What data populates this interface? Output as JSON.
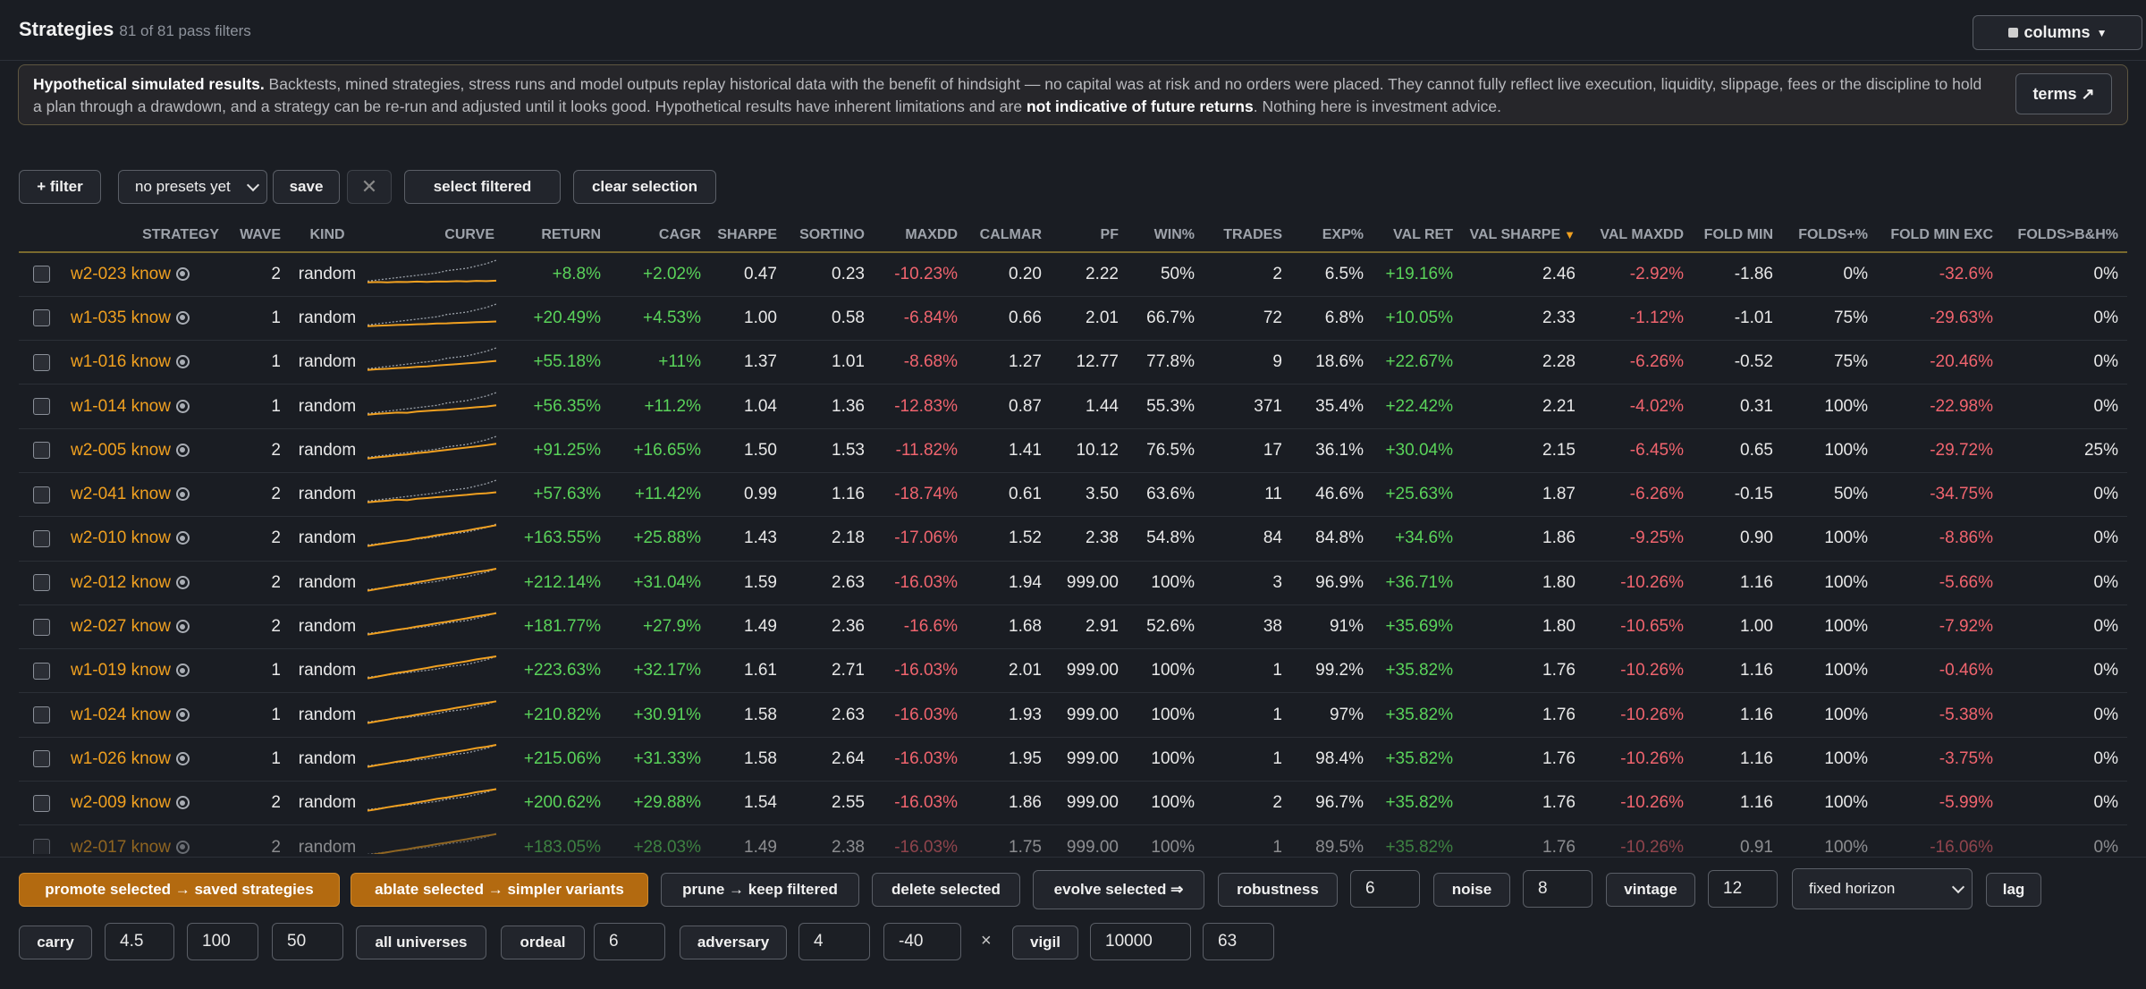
{
  "header": {
    "title": "Strategies",
    "subtitle": "81 of 81 pass filters",
    "columns_label": "columns"
  },
  "disclaimer": {
    "bold_lead": "Hypothetical simulated results.",
    "text1": " Backtests, mined strategies, stress runs and model outputs replay historical data with the benefit of hindsight — no capital was at risk and no orders were placed. They cannot fully reflect live execution, liquidity, slippage, fees or the discipline to hold a plan through a drawdown, and a strategy can be re-run and adjusted until it looks good. Hypothetical results have inherent limitations and are ",
    "bold_mid": "not indicative of future returns",
    "text2": ". Nothing here is investment advice.",
    "terms_label": "terms ↗"
  },
  "toolbar": {
    "filter_label": "+ filter",
    "preset_value": "no presets yet",
    "save_label": "save",
    "clear_x": "✕",
    "select_filtered_label": "select filtered",
    "clear_selection_label": "clear selection"
  },
  "table": {
    "headers": [
      "STRATEGY",
      "WAVE",
      "KIND",
      "CURVE",
      "RETURN",
      "CAGR",
      "SHARPE",
      "SORTINO",
      "MAXDD",
      "CALMAR",
      "PF",
      "WIN%",
      "TRADES",
      "EXP%",
      "VAL RET",
      "VAL SHARPE",
      "VAL MAXDD",
      "FOLD MIN",
      "FOLDS+%",
      "FOLD MIN EXC",
      "FOLDS>B&H%"
    ],
    "sort_indicator": "▼",
    "rows": [
      {
        "name": "w2-023 know",
        "wave": "2",
        "kind": "random",
        "ret": "+8.8%",
        "cagr": "+2.02%",
        "sharpe": "0.47",
        "sortino": "0.23",
        "maxdd": "-10.23%",
        "calmar": "0.20",
        "pf": "2.22",
        "win": "50%",
        "trades": "2",
        "exp": "6.5%",
        "valret": "+19.16%",
        "valsharpe": "2.46",
        "valmaxdd": "-2.92%",
        "foldmin": "-1.86",
        "foldspos": "0%",
        "foldminexc": "-32.6%",
        "foldsbh": "0%",
        "curve": [
          0.05,
          0.06,
          0.05,
          0.07,
          0.06,
          0.08,
          0.07,
          0.09,
          0.08,
          0.1,
          0.09,
          0.11,
          0.1,
          0.12
        ],
        "bench": [
          0.1,
          0.15,
          0.2,
          0.25,
          0.3,
          0.35,
          0.4,
          0.45,
          0.55,
          0.6,
          0.65,
          0.75,
          0.85,
          1.0
        ]
      },
      {
        "name": "w1-035 know",
        "wave": "1",
        "kind": "random",
        "ret": "+20.49%",
        "cagr": "+4.53%",
        "sharpe": "1.00",
        "sortino": "0.58",
        "maxdd": "-6.84%",
        "calmar": "0.66",
        "pf": "2.01",
        "win": "66.7%",
        "trades": "72",
        "exp": "6.8%",
        "valret": "+10.05%",
        "valsharpe": "2.33",
        "valmaxdd": "-1.12%",
        "foldmin": "-1.01",
        "foldspos": "75%",
        "foldminexc": "-29.63%",
        "foldsbh": "0%",
        "curve": [
          0.05,
          0.07,
          0.08,
          0.1,
          0.11,
          0.13,
          0.14,
          0.16,
          0.17,
          0.19,
          0.2,
          0.22,
          0.23,
          0.25
        ],
        "bench": [
          0.1,
          0.15,
          0.2,
          0.25,
          0.3,
          0.35,
          0.4,
          0.45,
          0.55,
          0.6,
          0.65,
          0.75,
          0.85,
          1.0
        ]
      },
      {
        "name": "w1-016 know",
        "wave": "1",
        "kind": "random",
        "ret": "+55.18%",
        "cagr": "+11%",
        "sharpe": "1.37",
        "sortino": "1.01",
        "maxdd": "-8.68%",
        "calmar": "1.27",
        "pf": "12.77",
        "win": "77.8%",
        "trades": "9",
        "exp": "18.6%",
        "valret": "+22.67%",
        "valsharpe": "2.28",
        "valmaxdd": "-6.26%",
        "foldmin": "-0.52",
        "foldspos": "75%",
        "foldminexc": "-20.46%",
        "foldsbh": "0%",
        "curve": [
          0.05,
          0.08,
          0.1,
          0.13,
          0.15,
          0.18,
          0.2,
          0.24,
          0.27,
          0.3,
          0.33,
          0.36,
          0.4,
          0.44
        ],
        "bench": [
          0.1,
          0.15,
          0.2,
          0.25,
          0.3,
          0.35,
          0.4,
          0.45,
          0.55,
          0.6,
          0.65,
          0.75,
          0.85,
          1.0
        ]
      },
      {
        "name": "w1-014 know",
        "wave": "1",
        "kind": "random",
        "ret": "+56.35%",
        "cagr": "+11.2%",
        "sharpe": "1.04",
        "sortino": "1.36",
        "maxdd": "-12.83%",
        "calmar": "0.87",
        "pf": "1.44",
        "win": "55.3%",
        "trades": "371",
        "exp": "35.4%",
        "valret": "+22.42%",
        "valsharpe": "2.21",
        "valmaxdd": "-4.02%",
        "foldmin": "0.31",
        "foldspos": "100%",
        "foldminexc": "-22.98%",
        "foldsbh": "0%",
        "curve": [
          0.05,
          0.09,
          0.11,
          0.14,
          0.13,
          0.18,
          0.21,
          0.24,
          0.26,
          0.3,
          0.33,
          0.37,
          0.4,
          0.45
        ],
        "bench": [
          0.1,
          0.15,
          0.2,
          0.25,
          0.3,
          0.35,
          0.4,
          0.45,
          0.55,
          0.6,
          0.65,
          0.75,
          0.85,
          1.0
        ]
      },
      {
        "name": "w2-005 know",
        "wave": "2",
        "kind": "random",
        "ret": "+91.25%",
        "cagr": "+16.65%",
        "sharpe": "1.50",
        "sortino": "1.53",
        "maxdd": "-11.82%",
        "calmar": "1.41",
        "pf": "10.12",
        "win": "76.5%",
        "trades": "17",
        "exp": "36.1%",
        "valret": "+30.04%",
        "valsharpe": "2.15",
        "valmaxdd": "-6.45%",
        "foldmin": "0.65",
        "foldspos": "100%",
        "foldminexc": "-29.72%",
        "foldsbh": "25%",
        "curve": [
          0.05,
          0.1,
          0.14,
          0.19,
          0.22,
          0.28,
          0.32,
          0.37,
          0.42,
          0.47,
          0.52,
          0.57,
          0.62,
          0.68
        ],
        "bench": [
          0.1,
          0.15,
          0.2,
          0.25,
          0.3,
          0.35,
          0.4,
          0.45,
          0.55,
          0.6,
          0.65,
          0.75,
          0.85,
          1.0
        ]
      },
      {
        "name": "w2-041 know",
        "wave": "2",
        "kind": "random",
        "ret": "+57.63%",
        "cagr": "+11.42%",
        "sharpe": "0.99",
        "sortino": "1.16",
        "maxdd": "-18.74%",
        "calmar": "0.61",
        "pf": "3.50",
        "win": "63.6%",
        "trades": "11",
        "exp": "46.6%",
        "valret": "+25.63%",
        "valsharpe": "1.87",
        "valmaxdd": "-6.26%",
        "foldmin": "-0.15",
        "foldspos": "50%",
        "foldminexc": "-34.75%",
        "foldsbh": "0%",
        "curve": [
          0.05,
          0.09,
          0.12,
          0.16,
          0.14,
          0.2,
          0.23,
          0.27,
          0.3,
          0.34,
          0.37,
          0.41,
          0.44,
          0.48
        ],
        "bench": [
          0.1,
          0.15,
          0.2,
          0.25,
          0.3,
          0.35,
          0.4,
          0.45,
          0.55,
          0.6,
          0.65,
          0.75,
          0.85,
          1.0
        ]
      },
      {
        "name": "w2-010 know",
        "wave": "2",
        "kind": "random",
        "ret": "+163.55%",
        "cagr": "+25.88%",
        "sharpe": "1.43",
        "sortino": "2.18",
        "maxdd": "-17.06%",
        "calmar": "1.52",
        "pf": "2.38",
        "win": "54.8%",
        "trades": "84",
        "exp": "84.8%",
        "valret": "+34.6%",
        "valsharpe": "1.86",
        "valmaxdd": "-9.25%",
        "foldmin": "0.90",
        "foldspos": "100%",
        "foldminexc": "-8.86%",
        "foldsbh": "0%",
        "curve": [
          0.05,
          0.12,
          0.18,
          0.25,
          0.3,
          0.38,
          0.44,
          0.52,
          0.58,
          0.65,
          0.72,
          0.8,
          0.87,
          0.95
        ],
        "bench": [
          0.1,
          0.15,
          0.2,
          0.25,
          0.3,
          0.35,
          0.4,
          0.45,
          0.55,
          0.6,
          0.65,
          0.75,
          0.85,
          1.0
        ]
      },
      {
        "name": "w2-012 know",
        "wave": "2",
        "kind": "random",
        "ret": "+212.14%",
        "cagr": "+31.04%",
        "sharpe": "1.59",
        "sortino": "2.63",
        "maxdd": "-16.03%",
        "calmar": "1.94",
        "pf": "999.00",
        "win": "100%",
        "trades": "3",
        "exp": "96.9%",
        "valret": "+36.71%",
        "valsharpe": "1.80",
        "valmaxdd": "-10.26%",
        "foldmin": "1.16",
        "foldspos": "100%",
        "foldminexc": "-5.66%",
        "foldsbh": "0%",
        "curve": [
          0.05,
          0.13,
          0.2,
          0.28,
          0.34,
          0.42,
          0.49,
          0.57,
          0.63,
          0.71,
          0.78,
          0.86,
          0.92,
          1.0
        ],
        "bench": [
          0.1,
          0.15,
          0.2,
          0.25,
          0.3,
          0.35,
          0.4,
          0.45,
          0.55,
          0.6,
          0.65,
          0.75,
          0.85,
          1.0
        ]
      },
      {
        "name": "w2-027 know",
        "wave": "2",
        "kind": "random",
        "ret": "+181.77%",
        "cagr": "+27.9%",
        "sharpe": "1.49",
        "sortino": "2.36",
        "maxdd": "-16.6%",
        "calmar": "1.68",
        "pf": "2.91",
        "win": "52.6%",
        "trades": "38",
        "exp": "91%",
        "valret": "+35.69%",
        "valsharpe": "1.80",
        "valmaxdd": "-10.65%",
        "foldmin": "1.00",
        "foldspos": "100%",
        "foldminexc": "-7.92%",
        "foldsbh": "0%",
        "curve": [
          0.05,
          0.12,
          0.19,
          0.26,
          0.32,
          0.4,
          0.46,
          0.54,
          0.6,
          0.68,
          0.75,
          0.83,
          0.9,
          0.97
        ],
        "bench": [
          0.1,
          0.15,
          0.2,
          0.25,
          0.3,
          0.35,
          0.4,
          0.45,
          0.55,
          0.6,
          0.65,
          0.75,
          0.85,
          1.0
        ]
      },
      {
        "name": "w1-019 know",
        "wave": "1",
        "kind": "random",
        "ret": "+223.63%",
        "cagr": "+32.17%",
        "sharpe": "1.61",
        "sortino": "2.71",
        "maxdd": "-16.03%",
        "calmar": "2.01",
        "pf": "999.00",
        "win": "100%",
        "trades": "1",
        "exp": "99.2%",
        "valret": "+35.82%",
        "valsharpe": "1.76",
        "valmaxdd": "-10.26%",
        "foldmin": "1.16",
        "foldspos": "100%",
        "foldminexc": "-0.46%",
        "foldsbh": "0%",
        "curve": [
          0.05,
          0.13,
          0.21,
          0.29,
          0.35,
          0.43,
          0.5,
          0.58,
          0.64,
          0.72,
          0.79,
          0.87,
          0.93,
          1.0
        ],
        "bench": [
          0.1,
          0.15,
          0.2,
          0.25,
          0.3,
          0.35,
          0.4,
          0.45,
          0.55,
          0.6,
          0.65,
          0.75,
          0.85,
          1.0
        ]
      },
      {
        "name": "w1-024 know",
        "wave": "1",
        "kind": "random",
        "ret": "+210.82%",
        "cagr": "+30.91%",
        "sharpe": "1.58",
        "sortino": "2.63",
        "maxdd": "-16.03%",
        "calmar": "1.93",
        "pf": "999.00",
        "win": "100%",
        "trades": "1",
        "exp": "97%",
        "valret": "+35.82%",
        "valsharpe": "1.76",
        "valmaxdd": "-10.26%",
        "foldmin": "1.16",
        "foldspos": "100%",
        "foldminexc": "-5.38%",
        "foldsbh": "0%",
        "curve": [
          0.05,
          0.13,
          0.2,
          0.28,
          0.34,
          0.42,
          0.49,
          0.57,
          0.63,
          0.71,
          0.78,
          0.86,
          0.92,
          0.99
        ],
        "bench": [
          0.1,
          0.15,
          0.2,
          0.25,
          0.3,
          0.35,
          0.4,
          0.45,
          0.55,
          0.6,
          0.65,
          0.75,
          0.85,
          1.0
        ]
      },
      {
        "name": "w1-026 know",
        "wave": "1",
        "kind": "random",
        "ret": "+215.06%",
        "cagr": "+31.33%",
        "sharpe": "1.58",
        "sortino": "2.64",
        "maxdd": "-16.03%",
        "calmar": "1.95",
        "pf": "999.00",
        "win": "100%",
        "trades": "1",
        "exp": "98.4%",
        "valret": "+35.82%",
        "valsharpe": "1.76",
        "valmaxdd": "-10.26%",
        "foldmin": "1.16",
        "foldspos": "100%",
        "foldminexc": "-3.75%",
        "foldsbh": "0%",
        "curve": [
          0.05,
          0.13,
          0.2,
          0.28,
          0.34,
          0.42,
          0.49,
          0.57,
          0.63,
          0.71,
          0.78,
          0.86,
          0.92,
          1.0
        ],
        "bench": [
          0.1,
          0.15,
          0.2,
          0.25,
          0.3,
          0.35,
          0.4,
          0.45,
          0.55,
          0.6,
          0.65,
          0.75,
          0.85,
          1.0
        ]
      },
      {
        "name": "w2-009 know",
        "wave": "2",
        "kind": "random",
        "ret": "+200.62%",
        "cagr": "+29.88%",
        "sharpe": "1.54",
        "sortino": "2.55",
        "maxdd": "-16.03%",
        "calmar": "1.86",
        "pf": "999.00",
        "win": "100%",
        "trades": "2",
        "exp": "96.7%",
        "valret": "+35.82%",
        "valsharpe": "1.76",
        "valmaxdd": "-10.26%",
        "foldmin": "1.16",
        "foldspos": "100%",
        "foldminexc": "-5.99%",
        "foldsbh": "0%",
        "curve": [
          0.05,
          0.12,
          0.2,
          0.27,
          0.33,
          0.41,
          0.48,
          0.56,
          0.62,
          0.7,
          0.77,
          0.85,
          0.91,
          0.98
        ],
        "bench": [
          0.1,
          0.15,
          0.2,
          0.25,
          0.3,
          0.35,
          0.4,
          0.45,
          0.55,
          0.6,
          0.65,
          0.75,
          0.85,
          1.0
        ]
      },
      {
        "name": "w2-017 know",
        "wave": "2",
        "kind": "random",
        "ret": "+183.05%",
        "cagr": "+28.03%",
        "sharpe": "1.49",
        "sortino": "2.38",
        "maxdd": "-16.03%",
        "calmar": "1.75",
        "pf": "999.00",
        "win": "100%",
        "trades": "1",
        "exp": "89.5%",
        "valret": "+35.82%",
        "valsharpe": "1.76",
        "valmaxdd": "-10.26%",
        "foldmin": "0.91",
        "foldspos": "100%",
        "foldminexc": "-16.06%",
        "foldsbh": "0%",
        "curve": [
          0.05,
          0.12,
          0.19,
          0.26,
          0.32,
          0.4,
          0.46,
          0.54,
          0.6,
          0.68,
          0.75,
          0.83,
          0.9,
          0.97
        ],
        "bench": [
          0.1,
          0.15,
          0.2,
          0.25,
          0.3,
          0.35,
          0.4,
          0.45,
          0.55,
          0.6,
          0.65,
          0.75,
          0.85,
          1.0
        ]
      }
    ]
  },
  "bottom": {
    "promote_label": "promote selected → saved strategies",
    "ablate_label": "ablate selected → simpler variants",
    "prune_label": "prune → keep filtered",
    "delete_label": "delete selected",
    "evolve_label": "evolve selected ⇒",
    "robustness_label": "robustness",
    "robustness_value": "6",
    "noise_label": "noise",
    "noise_value": "8",
    "vintage_label": "vintage",
    "vintage_value": "12",
    "horizon_value": "fixed horizon",
    "lag_label": "lag",
    "carry_label": "carry",
    "carry_value1": "4.5",
    "carry_value2": "100",
    "carry_value3": "50",
    "all_universes_label": "all universes",
    "ordeal_label": "ordeal",
    "ordeal_value": "6",
    "adversary_label": "adversary",
    "adversary_value1": "4",
    "adversary_value2": "-40",
    "times_symbol": "×",
    "vigil_label": "vigil",
    "vigil_value1": "10000",
    "vigil_value2": "63"
  },
  "colors": {
    "accent": "#f0a020",
    "positive": "#5ad35a",
    "negative": "#f0646e",
    "orange_button": "#b36a10"
  }
}
